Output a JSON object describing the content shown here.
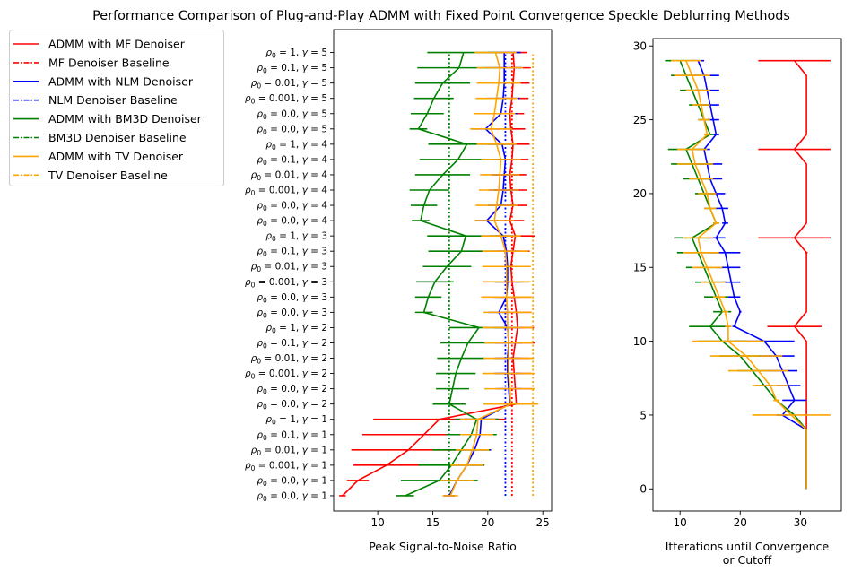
{
  "figure": {
    "title": "Performance Comparison of Plug-and-Play ADMM with Fixed Point Convergence Speckle Deblurring Methods"
  },
  "legend": {
    "placement": "upper-left (outside)",
    "entries": [
      {
        "label": "ADMM with MF Denoiser",
        "color": "#ff0000",
        "style": "solid"
      },
      {
        "label": "MF Denoiser Baseline",
        "color": "#ff0000",
        "style": "dashdot"
      },
      {
        "label": "ADMM with NLM Denoiser",
        "color": "#0000ff",
        "style": "solid"
      },
      {
        "label": "NLM Denoiser Baseline",
        "color": "#0000ff",
        "style": "dashdot"
      },
      {
        "label": "ADMM with BM3D Denoiser",
        "color": "#008000",
        "style": "solid"
      },
      {
        "label": "BM3D Denoiser Baseline",
        "color": "#008000",
        "style": "dashdot"
      },
      {
        "label": "ADMM with TV Denoiser",
        "color": "#ffa500",
        "style": "solid"
      },
      {
        "label": "TV Denoiser Baseline",
        "color": "#ffa500",
        "style": "dashdot"
      }
    ]
  },
  "chart_data": [
    {
      "type": "line",
      "orientation": "horizontal (errorbars in x)",
      "xlabel": "Peak Signal-to-Noise Ratio",
      "ylabel": "",
      "xlim": [
        6,
        25.8
      ],
      "xticks": [
        10,
        15,
        20,
        25
      ],
      "ylim": [
        -1,
        30.5
      ],
      "yticklabels": [
        "$\\rho_0 = 0.0, \\gamma = 1$",
        "$\\rho_0 = 0.0, \\gamma = 1$",
        "$\\rho_0 = 0.001, \\gamma = 1$",
        "$\\rho_0 = 0.01, \\gamma = 1$",
        "$\\rho_0 = 0.1, \\gamma = 1$",
        "$\\rho_0 = 1, \\gamma = 1$",
        "$\\rho_0 = 0.0, \\gamma = 2$",
        "$\\rho_0 = 0.0, \\gamma = 2$",
        "$\\rho_0 = 0.001, \\gamma = 2$",
        "$\\rho_0 = 0.01, \\gamma = 2$",
        "$\\rho_0 = 0.1, \\gamma = 2$",
        "$\\rho_0 = 1, \\gamma = 2$",
        "$\\rho_0 = 0.0, \\gamma = 3$",
        "$\\rho_0 = 0.0, \\gamma = 3$",
        "$\\rho_0 = 0.001, \\gamma = 3$",
        "$\\rho_0 = 0.01, \\gamma = 3$",
        "$\\rho_0 = 0.1, \\gamma = 3$",
        "$\\rho_0 = 1, \\gamma = 3$",
        "$\\rho_0 = 0.0, \\gamma = 4$",
        "$\\rho_0 = 0.0, \\gamma = 4$",
        "$\\rho_0 = 0.001, \\gamma = 4$",
        "$\\rho_0 = 0.01, \\gamma = 4$",
        "$\\rho_0 = 0.1, \\gamma = 4$",
        "$\\rho_0 = 1, \\gamma = 4$",
        "$\\rho_0 = 0.0, \\gamma = 5$",
        "$\\rho_0 = 0.0, \\gamma = 5$",
        "$\\rho_0 = 0.001, \\gamma = 5$",
        "$\\rho_0 = 0.01, \\gamma = 5$",
        "$\\rho_0 = 0.1, \\gamma = 5$",
        "$\\rho_0 = 1, \\gamma = 5$"
      ],
      "baselines": [
        {
          "name": "MF Denoiser Baseline",
          "x": 22.2,
          "color": "#ff0000"
        },
        {
          "name": "NLM Denoiser Baseline",
          "x": 21.6,
          "color": "#0000ff"
        },
        {
          "name": "BM3D Denoiser Baseline",
          "x": 16.5,
          "color": "#008000"
        },
        {
          "name": "TV Denoiser Baseline",
          "x": 24.1,
          "color": "#ffa500"
        }
      ],
      "series": [
        {
          "name": "ADMM with MF Denoiser",
          "color": "#ff0000",
          "values": [
            6.8,
            8.2,
            10.8,
            12.8,
            14.2,
            15.6,
            22.6,
            22.5,
            22.4,
            22.3,
            22.5,
            22.7,
            22.6,
            22.4,
            22.2,
            22.1,
            22.3,
            22.5,
            22.0,
            22.3,
            22.1,
            22.0,
            22.2,
            22.3,
            22.1,
            22.0,
            22.2,
            22.3,
            22.4,
            22.3
          ],
          "err": [
            0.3,
            1.0,
            3.0,
            5.2,
            5.6,
            6.0,
            1.8,
            1.5,
            1.5,
            1.5,
            1.8,
            1.5,
            1.3,
            1.5,
            1.5,
            1.5,
            1.5,
            1.8,
            1.3,
            1.3,
            1.5,
            1.5,
            1.5,
            1.5,
            1.3,
            1.3,
            1.5,
            1.5,
            1.5,
            1.3
          ]
        },
        {
          "name": "ADMM with NLM Denoiser",
          "color": "#0000ff",
          "values": [
            16.5,
            17.2,
            18.1,
            18.8,
            19.3,
            19.4,
            22.0,
            21.9,
            21.8,
            21.8,
            21.9,
            21.8,
            21.0,
            21.7,
            21.8,
            21.8,
            21.7,
            21.4,
            19.9,
            21.2,
            21.4,
            21.5,
            21.6,
            21.3,
            19.8,
            21.2,
            21.4,
            21.5,
            21.5,
            21.5
          ],
          "err": [
            0.5,
            1.0,
            1.5,
            1.5,
            1.5,
            1.5,
            1.0,
            1.2,
            1.2,
            1.2,
            1.2,
            1.3,
            1.0,
            1.2,
            1.2,
            1.2,
            1.2,
            1.2,
            1.0,
            1.2,
            1.3,
            1.2,
            1.3,
            1.3,
            1.2,
            1.5,
            1.5,
            1.5,
            1.6,
            1.5
          ]
        },
        {
          "name": "ADMM with BM3D Denoiser",
          "color": "#008000",
          "values": [
            12.5,
            15.6,
            16.7,
            17.6,
            18.5,
            19.0,
            16.5,
            16.8,
            17.1,
            17.6,
            18.2,
            19.2,
            14.2,
            14.6,
            15.2,
            16.3,
            17.6,
            18.0,
            13.9,
            14.2,
            14.7,
            15.9,
            17.3,
            18.1,
            13.7,
            14.5,
            15.1,
            15.9,
            17.4,
            17.8
          ],
          "err": [
            0.8,
            3.5,
            3.0,
            2.6,
            2.3,
            2.0,
            1.5,
            1.5,
            1.8,
            2.2,
            2.5,
            2.7,
            0.8,
            1.2,
            1.7,
            2.2,
            3.0,
            3.5,
            0.8,
            1.2,
            1.8,
            2.5,
            3.5,
            3.5,
            0.8,
            1.5,
            1.8,
            2.5,
            3.8,
            3.3
          ]
        },
        {
          "name": "ADMM with TV Denoiser",
          "color": "#ffa500",
          "values": [
            16.6,
            17.2,
            18.1,
            18.6,
            19.0,
            19.1,
            22.1,
            22.0,
            21.9,
            21.9,
            21.9,
            21.8,
            21.8,
            21.7,
            21.7,
            21.7,
            21.6,
            21.2,
            20.6,
            20.8,
            21.0,
            21.1,
            21.2,
            20.8,
            20.3,
            20.6,
            20.8,
            21.0,
            21.1,
            20.7
          ],
          "err": [
            0.7,
            1.5,
            1.5,
            1.5,
            1.5,
            1.6,
            2.5,
            2.3,
            2.4,
            2.3,
            2.2,
            2.3,
            2.2,
            2.3,
            2.2,
            2.2,
            2.1,
            1.8,
            1.8,
            1.9,
            1.8,
            1.8,
            1.8,
            1.8,
            1.9,
            1.9,
            1.9,
            2.0,
            2.1,
            1.9
          ]
        }
      ]
    },
    {
      "type": "line",
      "orientation": "horizontal (errorbars in x)",
      "xlabel": "Itterations until Convergence\nor Cutoff",
      "ylabel": "",
      "xlim": [
        5.5,
        36.8
      ],
      "xticks": [
        10,
        20,
        30
      ],
      "ylim": [
        -1.5,
        30.5
      ],
      "yticks": [
        0,
        5,
        10,
        15,
        20,
        25,
        30
      ],
      "series": [
        {
          "name": "ADMM with MF Denoiser",
          "color": "#ff0000",
          "values": [
            31,
            31,
            31,
            31,
            31,
            31,
            31,
            31,
            31,
            31,
            31,
            29,
            31,
            31,
            31,
            31,
            31,
            29,
            31,
            31,
            31,
            31,
            31,
            29,
            31,
            31,
            31,
            31,
            31,
            29
          ],
          "err": [
            0,
            0,
            0,
            0,
            0,
            0.1,
            0,
            0,
            0,
            0,
            0,
            4.5,
            0,
            0,
            0,
            0,
            0.2,
            6.0,
            0,
            0,
            0,
            0,
            0,
            6.0,
            0,
            0,
            0,
            0,
            0,
            6.0
          ]
        },
        {
          "name": "ADMM with NLM Denoiser",
          "color": "#0000ff",
          "values": [
            31,
            31,
            31,
            31,
            31,
            27,
            29,
            28,
            27,
            26,
            24,
            19,
            20,
            19,
            18.5,
            18,
            17.5,
            16,
            17.5,
            17,
            16,
            15,
            14.5,
            14,
            16,
            15.5,
            15,
            14.5,
            14,
            13
          ],
          "err": [
            0,
            0,
            0,
            0,
            0,
            1.0,
            2.0,
            2.0,
            2.5,
            3.0,
            5.0,
            0.3,
            0.2,
            1.0,
            1.5,
            2.0,
            2.5,
            1.5,
            0.5,
            1.0,
            1.5,
            2.0,
            2.5,
            1.0,
            0.5,
            1.0,
            1.5,
            2.0,
            2.5,
            1.0
          ]
        },
        {
          "name": "ADMM with BM3D Denoiser",
          "color": "#008000",
          "values": [
            31,
            31,
            31,
            31,
            31,
            29,
            26,
            24,
            22,
            20,
            17,
            15,
            17,
            16,
            15,
            14,
            13,
            12,
            16,
            15,
            14,
            13,
            12,
            11,
            15,
            14,
            13,
            12,
            11,
            10
          ],
          "err": [
            0,
            0,
            0,
            0,
            0,
            0,
            0.2,
            1.5,
            2.5,
            3.5,
            4.0,
            3.5,
            1.5,
            2.0,
            2.5,
            3.0,
            3.5,
            3.0,
            0.5,
            1.0,
            1.5,
            2.5,
            3.5,
            3.0,
            0.5,
            1.0,
            1.5,
            2.0,
            2.5,
            2.5
          ]
        },
        {
          "name": "ADMM with TV Denoiser",
          "color": "#ffa500",
          "values": [
            31,
            31,
            31,
            31,
            31,
            28.5,
            26,
            25,
            23,
            21,
            18,
            18,
            17.5,
            16.5,
            15.5,
            14.5,
            13.5,
            13,
            16,
            15,
            14.5,
            13.5,
            12.5,
            12,
            14.5,
            14,
            13.5,
            13,
            12,
            11
          ],
          "err": [
            0,
            0,
            0,
            0,
            0,
            6.5,
            0.5,
            3.0,
            5.0,
            6.0,
            6.0,
            0.5,
            0.5,
            1.0,
            2.0,
            2.5,
            3.0,
            2.5,
            0.5,
            1.0,
            1.5,
            2.0,
            3.0,
            2.5,
            0.5,
            1.0,
            1.5,
            2.0,
            3.0,
            2.5
          ]
        }
      ]
    }
  ]
}
